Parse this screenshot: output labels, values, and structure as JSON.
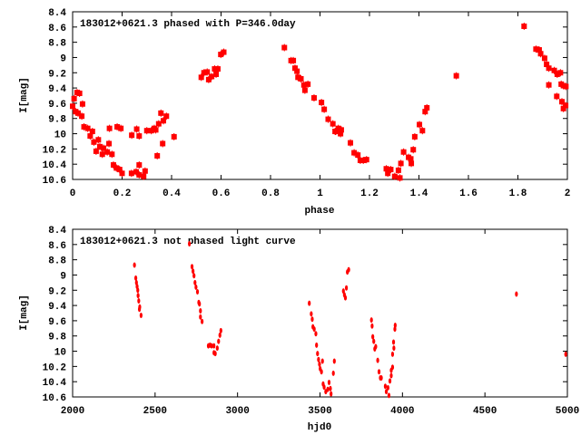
{
  "chart_data": [
    {
      "type": "scatter",
      "title": "183012+0621.3 phased with P=346.0day",
      "xlabel": "phase",
      "ylabel": "I[mag]",
      "xlim": [
        0,
        2
      ],
      "ylim": [
        8.4,
        10.6
      ],
      "y_inverted": true,
      "xticks": [
        "0",
        "0.2",
        "0.4",
        "0.6",
        "0.8",
        "1",
        "1.2",
        "1.4",
        "1.6",
        "1.8",
        "2"
      ],
      "yticks": [
        "8.4",
        "8.6",
        "8.8",
        "9",
        "9.2",
        "9.4",
        "9.6",
        "9.8",
        "10",
        "10.2",
        "10.4",
        "10.6"
      ],
      "color": "#ff0000",
      "points": [
        [
          0.0,
          9.64
        ],
        [
          0.006,
          9.54
        ],
        [
          0.018,
          9.46
        ],
        [
          0.028,
          9.47
        ],
        [
          0.04,
          9.61
        ],
        [
          0.012,
          9.71
        ],
        [
          0.022,
          9.73
        ],
        [
          0.037,
          9.77
        ],
        [
          0.046,
          9.91
        ],
        [
          0.061,
          9.93
        ],
        [
          0.08,
          9.97
        ],
        [
          0.071,
          10.03
        ],
        [
          0.086,
          10.11
        ],
        [
          0.095,
          10.23
        ],
        [
          0.104,
          10.08
        ],
        [
          0.11,
          10.17
        ],
        [
          0.12,
          10.27
        ],
        [
          0.125,
          10.19
        ],
        [
          0.14,
          10.24
        ],
        [
          0.147,
          10.13
        ],
        [
          0.149,
          9.93
        ],
        [
          0.159,
          10.27
        ],
        [
          0.165,
          10.41
        ],
        [
          0.177,
          10.45
        ],
        [
          0.19,
          10.47
        ],
        [
          0.2,
          10.52
        ],
        [
          0.18,
          9.91
        ],
        [
          0.195,
          9.93
        ],
        [
          0.238,
          10.52
        ],
        [
          0.257,
          10.5
        ],
        [
          0.269,
          10.54
        ],
        [
          0.287,
          10.56
        ],
        [
          0.293,
          10.49
        ],
        [
          0.269,
          10.41
        ],
        [
          0.239,
          10.02
        ],
        [
          0.259,
          9.94
        ],
        [
          0.269,
          10.03
        ],
        [
          0.3,
          9.96
        ],
        [
          0.318,
          9.96
        ],
        [
          0.33,
          9.93
        ],
        [
          0.336,
          9.95
        ],
        [
          0.342,
          10.29
        ],
        [
          0.348,
          9.87
        ],
        [
          0.357,
          9.73
        ],
        [
          0.364,
          10.13
        ],
        [
          0.367,
          9.83
        ],
        [
          0.379,
          9.77
        ],
        [
          0.41,
          10.04
        ],
        [
          0.52,
          9.26
        ],
        [
          0.531,
          9.2
        ],
        [
          0.544,
          9.19
        ],
        [
          0.55,
          9.29
        ],
        [
          0.562,
          9.25
        ],
        [
          0.574,
          9.15
        ],
        [
          0.58,
          9.22
        ],
        [
          0.587,
          9.15
        ],
        [
          0.599,
          8.96
        ],
        [
          0.611,
          8.93
        ],
        [
          0.856,
          8.87
        ],
        [
          0.883,
          9.04
        ],
        [
          0.892,
          9.04
        ],
        [
          0.899,
          9.14
        ],
        [
          0.907,
          9.18
        ],
        [
          0.911,
          9.26
        ],
        [
          0.923,
          9.28
        ],
        [
          0.935,
          9.36
        ],
        [
          0.939,
          9.43
        ],
        [
          0.951,
          9.35
        ],
        [
          0.976,
          9.53
        ],
        [
          1.006,
          9.59
        ],
        [
          1.017,
          9.68
        ],
        [
          1.033,
          9.81
        ],
        [
          1.052,
          9.87
        ],
        [
          1.061,
          9.97
        ],
        [
          1.064,
          9.97
        ],
        [
          1.074,
          9.93
        ],
        [
          1.086,
          9.95
        ],
        [
          1.083,
          10.0
        ],
        [
          1.123,
          10.12
        ],
        [
          1.138,
          10.25
        ],
        [
          1.153,
          10.28
        ],
        [
          1.163,
          10.35
        ],
        [
          1.175,
          10.35
        ],
        [
          1.188,
          10.34
        ],
        [
          1.268,
          10.46
        ],
        [
          1.274,
          10.52
        ],
        [
          1.286,
          10.47
        ],
        [
          1.302,
          10.56
        ],
        [
          1.317,
          10.48
        ],
        [
          1.323,
          10.58
        ],
        [
          1.327,
          10.39
        ],
        [
          1.338,
          10.24
        ],
        [
          1.358,
          10.31
        ],
        [
          1.367,
          10.33
        ],
        [
          1.369,
          10.39
        ],
        [
          1.377,
          10.21
        ],
        [
          1.383,
          10.04
        ],
        [
          1.402,
          9.88
        ],
        [
          1.414,
          9.96
        ],
        [
          1.425,
          9.71
        ],
        [
          1.432,
          9.66
        ],
        [
          1.551,
          9.24
        ],
        [
          1.825,
          8.59
        ],
        [
          1.873,
          8.89
        ],
        [
          1.886,
          8.9
        ],
        [
          1.892,
          8.95
        ],
        [
          1.908,
          9.01
        ],
        [
          1.916,
          9.09
        ],
        [
          1.925,
          9.14
        ],
        [
          1.925,
          9.36
        ],
        [
          1.947,
          9.17
        ],
        [
          1.959,
          9.22
        ],
        [
          1.972,
          9.2
        ],
        [
          1.975,
          9.35
        ],
        [
          1.984,
          9.37
        ],
        [
          1.994,
          9.38
        ],
        [
          1.957,
          9.51
        ],
        [
          1.978,
          9.58
        ],
        [
          1.984,
          9.67
        ],
        [
          1.993,
          9.63
        ]
      ]
    },
    {
      "type": "scatter",
      "title": "183012+0621.3 not phased light curve",
      "xlabel": "hjd0",
      "ylabel": "I[mag]",
      "xlim": [
        2000,
        5000
      ],
      "ylim": [
        8.4,
        10.6
      ],
      "y_inverted": true,
      "xticks": [
        "2000",
        "2500",
        "3000",
        "3500",
        "4000",
        "4500",
        "5000"
      ],
      "yticks": [
        "8.4",
        "8.6",
        "8.8",
        "9",
        "9.2",
        "9.4",
        "9.6",
        "9.8",
        "10",
        "10.2",
        "10.4",
        "10.6"
      ],
      "color": "#ff0000",
      "points": [
        [
          2375,
          8.87
        ],
        [
          2383,
          9.04
        ],
        [
          2387,
          9.1
        ],
        [
          2391,
          9.15
        ],
        [
          2395,
          9.2
        ],
        [
          2397,
          9.27
        ],
        [
          2401,
          9.34
        ],
        [
          2407,
          9.42
        ],
        [
          2405,
          9.45
        ],
        [
          2415,
          9.53
        ],
        [
          2708,
          8.59
        ],
        [
          2724,
          8.89
        ],
        [
          2730,
          8.95
        ],
        [
          2736,
          9.01
        ],
        [
          2742,
          9.1
        ],
        [
          2748,
          9.16
        ],
        [
          2757,
          9.22
        ],
        [
          2765,
          9.36
        ],
        [
          2769,
          9.38
        ],
        [
          2775,
          9.47
        ],
        [
          2775,
          9.55
        ],
        [
          2785,
          9.61
        ],
        [
          2823,
          9.93
        ],
        [
          2833,
          9.92
        ],
        [
          2843,
          9.93
        ],
        [
          2857,
          9.93
        ],
        [
          2857,
          10.02
        ],
        [
          2865,
          10.03
        ],
        [
          2877,
          9.96
        ],
        [
          2885,
          9.87
        ],
        [
          2893,
          9.79
        ],
        [
          2899,
          9.73
        ],
        [
          3435,
          9.37
        ],
        [
          3447,
          9.51
        ],
        [
          3453,
          9.58
        ],
        [
          3457,
          9.68
        ],
        [
          3465,
          9.71
        ],
        [
          3475,
          9.77
        ],
        [
          3479,
          9.92
        ],
        [
          3485,
          10.03
        ],
        [
          3491,
          10.11
        ],
        [
          3497,
          10.17
        ],
        [
          3501,
          10.23
        ],
        [
          3509,
          10.27
        ],
        [
          3515,
          10.13
        ],
        [
          3519,
          10.43
        ],
        [
          3525,
          10.47
        ],
        [
          3535,
          10.53
        ],
        [
          3547,
          10.5
        ],
        [
          3555,
          10.41
        ],
        [
          3563,
          10.49
        ],
        [
          3567,
          10.56
        ],
        [
          3581,
          10.29
        ],
        [
          3587,
          10.13
        ],
        [
          3642,
          9.21
        ],
        [
          3648,
          9.26
        ],
        [
          3654,
          9.3
        ],
        [
          3660,
          9.17
        ],
        [
          3666,
          8.96
        ],
        [
          3674,
          8.93
        ],
        [
          3812,
          9.59
        ],
        [
          3816,
          9.67
        ],
        [
          3820,
          9.81
        ],
        [
          3826,
          9.87
        ],
        [
          3832,
          9.97
        ],
        [
          3838,
          9.94
        ],
        [
          3850,
          10.12
        ],
        [
          3858,
          10.27
        ],
        [
          3866,
          10.35
        ],
        [
          3872,
          10.35
        ],
        [
          3896,
          10.46
        ],
        [
          3902,
          10.53
        ],
        [
          3912,
          10.48
        ],
        [
          3918,
          10.58
        ],
        [
          3924,
          10.39
        ],
        [
          3932,
          10.32
        ],
        [
          3932,
          10.25
        ],
        [
          3940,
          10.21
        ],
        [
          3940,
          10.04
        ],
        [
          3948,
          9.96
        ],
        [
          3946,
          9.88
        ],
        [
          3954,
          9.71
        ],
        [
          3956,
          9.66
        ],
        [
          4691,
          9.25
        ],
        [
          4990,
          10.04
        ]
      ]
    }
  ]
}
